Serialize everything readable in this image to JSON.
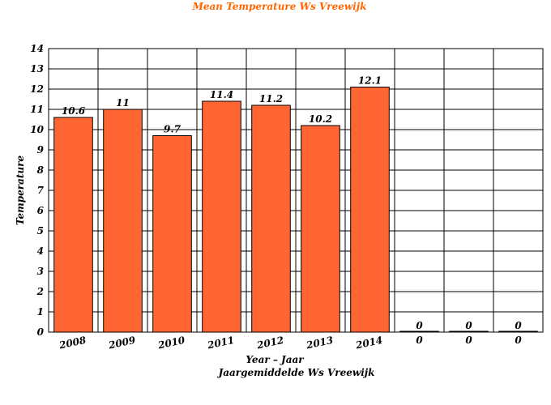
{
  "chart_data": {
    "type": "bar",
    "title": "Mean Temperature Ws Vreewijk",
    "xlabel": "Year – Jaar",
    "subtitle_x": "Jaargemiddelde Ws Vreewijk",
    "ylabel": "Temperature",
    "ylim": [
      0,
      14
    ],
    "yticks": [
      0,
      1,
      2,
      3,
      4,
      5,
      6,
      7,
      8,
      9,
      10,
      11,
      12,
      13,
      14
    ],
    "categories": [
      "2008",
      "2009",
      "2010",
      "2011",
      "2012",
      "2013",
      "2014",
      "0",
      "0",
      "0"
    ],
    "values": [
      10.6,
      11,
      9.7,
      11.4,
      11.2,
      10.2,
      12.1,
      0,
      0,
      0
    ],
    "grid": true,
    "colors": {
      "bar": "#FF6633",
      "title": "#FF6600",
      "grid": "#000000"
    }
  }
}
